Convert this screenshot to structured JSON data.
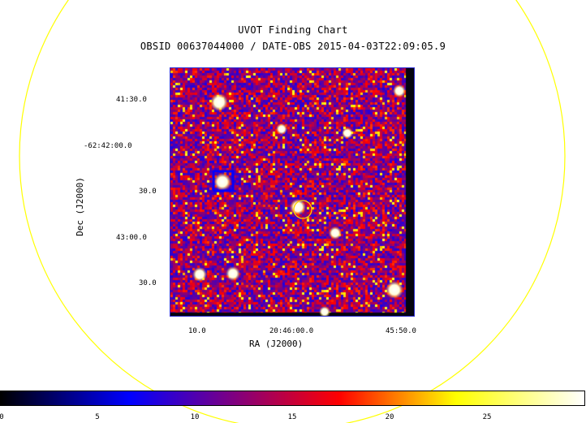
{
  "header": {
    "title": "UVOT Finding Chart",
    "subtitle": "OBSID 00637044000 / DATE-OBS 2015-04-03T22:09:05.9"
  },
  "axes": {
    "dec_ticks": [
      "41:30.0",
      "-62:42:00.0",
      "30.0",
      "43:00.0",
      "30.0"
    ],
    "ra_ticks": [
      "10.0",
      "20:46:00.0",
      "45:50.0"
    ],
    "xlabel": "RA (J2000)",
    "ylabel": "Dec (J2000)"
  },
  "colorbar": {
    "ticks": [
      "0",
      "5",
      "10",
      "15",
      "20",
      "25"
    ],
    "colors": [
      "#000000",
      "#0000ff",
      "#ff0000",
      "#ffff00",
      "#ffffff"
    ]
  },
  "colors": {
    "field_circle": "#ffff00",
    "frame": "#2a2ad0",
    "target_circle": "#ffd000"
  }
}
